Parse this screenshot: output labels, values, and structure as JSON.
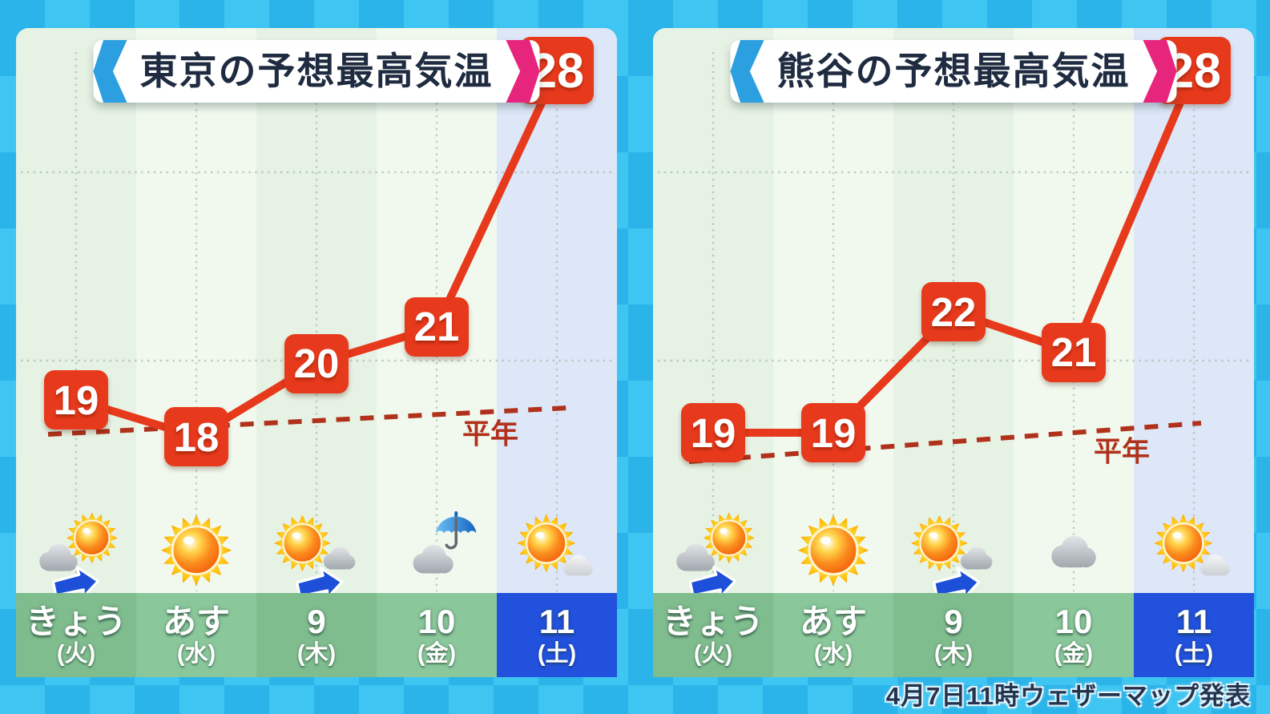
{
  "caption": "4月7日11時ウェザーマップ発表",
  "normal_label": "平年",
  "colors": {
    "accent_red": "#e7391b",
    "normal_line_red": "#b0321c",
    "weekend_blue": "#2151dd",
    "weekday_green": "#7fbc8e",
    "title_blue_bracket": "#2b9fe0",
    "title_pink_bracket": "#e7257d",
    "background_cyan": "#2fb9ec"
  },
  "panels": [
    {
      "id": "tokyo",
      "title": "東京の予想最高気温",
      "days": [
        {
          "label": "きょう",
          "sub": "(火)",
          "temp": 19,
          "icon": "cloud-then-sun-icon",
          "weekend": false
        },
        {
          "label": "あす",
          "sub": "(水)",
          "temp": 18,
          "icon": "sunny-icon",
          "weekend": false
        },
        {
          "label": "9",
          "sub": "(木)",
          "temp": 20,
          "icon": "sun-then-cloud-icon",
          "weekend": false
        },
        {
          "label": "10",
          "sub": "(金)",
          "temp": 21,
          "icon": "cloud-umbrella-icon",
          "weekend": false
        },
        {
          "label": "11",
          "sub": "(土)",
          "temp": 28,
          "icon": "sun-and-cloud-icon",
          "weekend": true
        }
      ]
    },
    {
      "id": "kumagaya",
      "title": "熊谷の予想最高気温",
      "days": [
        {
          "label": "きょう",
          "sub": "(火)",
          "temp": 19,
          "icon": "cloud-then-sun-icon",
          "weekend": false
        },
        {
          "label": "あす",
          "sub": "(水)",
          "temp": 19,
          "icon": "sunny-icon",
          "weekend": false
        },
        {
          "label": "9",
          "sub": "(木)",
          "temp": 22,
          "icon": "sun-then-cloud-icon",
          "weekend": false
        },
        {
          "label": "10",
          "sub": "(金)",
          "temp": 21,
          "icon": "cloudy-icon",
          "weekend": false
        },
        {
          "label": "11",
          "sub": "(土)",
          "temp": 28,
          "icon": "sun-and-cloud-icon",
          "weekend": true
        }
      ]
    }
  ],
  "chart_data": [
    {
      "type": "line",
      "title": "東京の予想最高気温",
      "categories": [
        "きょう(火)",
        "あす(水)",
        "9(木)",
        "10(金)",
        "11(土)"
      ],
      "series": [
        {
          "name": "予想最高気温",
          "values": [
            19,
            18,
            20,
            21,
            28
          ]
        },
        {
          "name": "平年",
          "style": "dashed",
          "approx_values": [
            18.1,
            18.3,
            18.4,
            18.6,
            18.8
          ]
        }
      ],
      "icons": [
        "cloud-then-sun-icon",
        "sunny-icon",
        "sun-then-cloud-icon",
        "cloud-umbrella-icon",
        "sun-and-cloud-icon"
      ],
      "grid": true,
      "legend_position": "none"
    },
    {
      "type": "line",
      "title": "熊谷の予想最高気温",
      "categories": [
        "きょう(火)",
        "あす(水)",
        "9(木)",
        "10(金)",
        "11(土)"
      ],
      "series": [
        {
          "name": "予想最高気温",
          "values": [
            19,
            19,
            22,
            21,
            28
          ]
        },
        {
          "name": "平年",
          "style": "dashed",
          "approx_values": [
            18.3,
            18.5,
            18.8,
            19.0,
            19.2
          ]
        }
      ],
      "icons": [
        "cloud-then-sun-icon",
        "sunny-icon",
        "sun-then-cloud-icon",
        "cloudy-icon",
        "sun-and-cloud-icon"
      ],
      "grid": true,
      "legend_position": "none"
    }
  ]
}
